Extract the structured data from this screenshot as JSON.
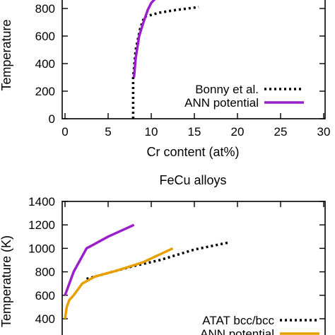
{
  "chart_data": [
    {
      "type": "line",
      "title": "",
      "xlabel": "Cr content (at%)",
      "ylabel": "Temperature",
      "xlim": [
        0,
        30
      ],
      "ylim": [
        0,
        900
      ],
      "xticks": [
        "0",
        "5",
        "10",
        "15",
        "20",
        "25",
        "30"
      ],
      "yticks": [
        "0",
        "200",
        "400",
        "600",
        "800"
      ],
      "legend_position": "bottom-right",
      "series": [
        {
          "name": "Bonny et al.",
          "style": "dotted",
          "color": "#000000",
          "x": [
            7.9,
            7.9,
            8.2,
            8.7,
            9.2,
            11.0,
            13.0,
            15.5
          ],
          "y": [
            0,
            300,
            500,
            650,
            740,
            770,
            790,
            810
          ]
        },
        {
          "name": "ANN potential",
          "style": "solid",
          "color": "#9b1fc8",
          "x": [
            8.0,
            8.2,
            8.6,
            9.1,
            9.6,
            10.0,
            10.6
          ],
          "y": [
            300,
            440,
            600,
            700,
            790,
            840,
            880
          ]
        }
      ]
    },
    {
      "type": "line",
      "title": "FeCu alloys",
      "xlabel": "",
      "ylabel": "Temperature (K)",
      "xlim": [
        0,
        30
      ],
      "ylim": [
        300,
        1400
      ],
      "yticks": [
        "400",
        "600",
        "800",
        "1000",
        "1200",
        "1400"
      ],
      "legend_position": "bottom-right",
      "series": [
        {
          "name": "ATAT bcc/bcc",
          "style": "dotted",
          "color": "#000000",
          "x": [
            2.5,
            4,
            6,
            8,
            11,
            15,
            19
          ],
          "y": [
            740,
            770,
            810,
            850,
            900,
            990,
            1050
          ]
        },
        {
          "name": "ANN potential",
          "style": "solid",
          "color": "#e8a000",
          "x": [
            0.0,
            0.2,
            0.5,
            1.0,
            2.0,
            3.5,
            6.0,
            9.0,
            12.5
          ],
          "y": [
            400,
            500,
            560,
            600,
            700,
            760,
            810,
            880,
            1000
          ]
        },
        {
          "name": "",
          "style": "solid",
          "color": "#9b1fc8",
          "x": [
            0.0,
            1.0,
            2.5,
            5.0,
            8.0
          ],
          "y": [
            600,
            800,
            1000,
            1100,
            1200
          ]
        }
      ]
    }
  ]
}
